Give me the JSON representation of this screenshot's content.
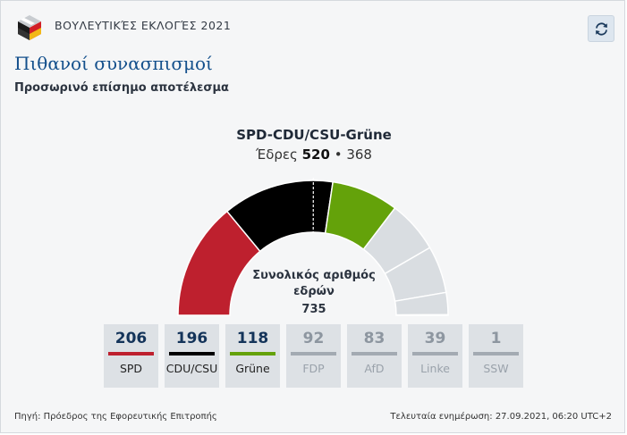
{
  "header": {
    "title": "ΒΟΥΛΕΥΤΙΚΈΣ ΕΚΛΟΓΈΣ 2021",
    "logo_icon": "ballot-box-icon",
    "refresh_icon": "refresh-icon"
  },
  "main": {
    "title": "Πιθανοί συνασπισμοί",
    "subtitle": "Προσωρινό επίσημο αποτέλεσμα"
  },
  "coalition": {
    "name": "SPD-CDU/CSU-Grüne",
    "seats_label": "Έδρες",
    "seats": "520",
    "separator": "•",
    "majority": "368"
  },
  "total": {
    "label": "Συνολικός αριθμός εδρών",
    "value": "735"
  },
  "chart_data": {
    "type": "semicircle-parliament",
    "total_seats": 735,
    "majority_threshold": 368,
    "series": [
      {
        "name": "SPD",
        "value": 206,
        "color": "#be202e",
        "in_coalition": true
      },
      {
        "name": "CDU/CSU",
        "value": 196,
        "color": "#000000",
        "in_coalition": true
      },
      {
        "name": "Grüne",
        "value": 118,
        "color": "#64a20a",
        "in_coalition": true
      },
      {
        "name": "FDP",
        "value": 92,
        "color": "#d9dde1",
        "in_coalition": false
      },
      {
        "name": "AfD",
        "value": 83,
        "color": "#d9dde1",
        "in_coalition": false
      },
      {
        "name": "Linke",
        "value": 39,
        "color": "#d9dde1",
        "in_coalition": false
      },
      {
        "name": "SSW",
        "value": 1,
        "color": "#d9dde1",
        "in_coalition": false
      }
    ]
  },
  "parties": [
    {
      "name": "SPD",
      "seats": "206",
      "color": "#be202e",
      "active": true
    },
    {
      "name": "CDU/CSU",
      "seats": "196",
      "color": "#000000",
      "active": true
    },
    {
      "name": "Grüne",
      "seats": "118",
      "color": "#64a20a",
      "active": true
    },
    {
      "name": "FDP",
      "seats": "92",
      "color": "#a3aab2",
      "active": false
    },
    {
      "name": "AfD",
      "seats": "83",
      "color": "#a3aab2",
      "active": false
    },
    {
      "name": "Linke",
      "seats": "39",
      "color": "#a3aab2",
      "active": false
    },
    {
      "name": "SSW",
      "seats": "1",
      "color": "#a3aab2",
      "active": false
    }
  ],
  "footer": {
    "source": "Πηγή: Πρόεδρος της Εφορευτικής Επιτροπής",
    "updated": "Τελευταία ενημέρωση: 27.09.2021, 06:20 UTC+2"
  }
}
